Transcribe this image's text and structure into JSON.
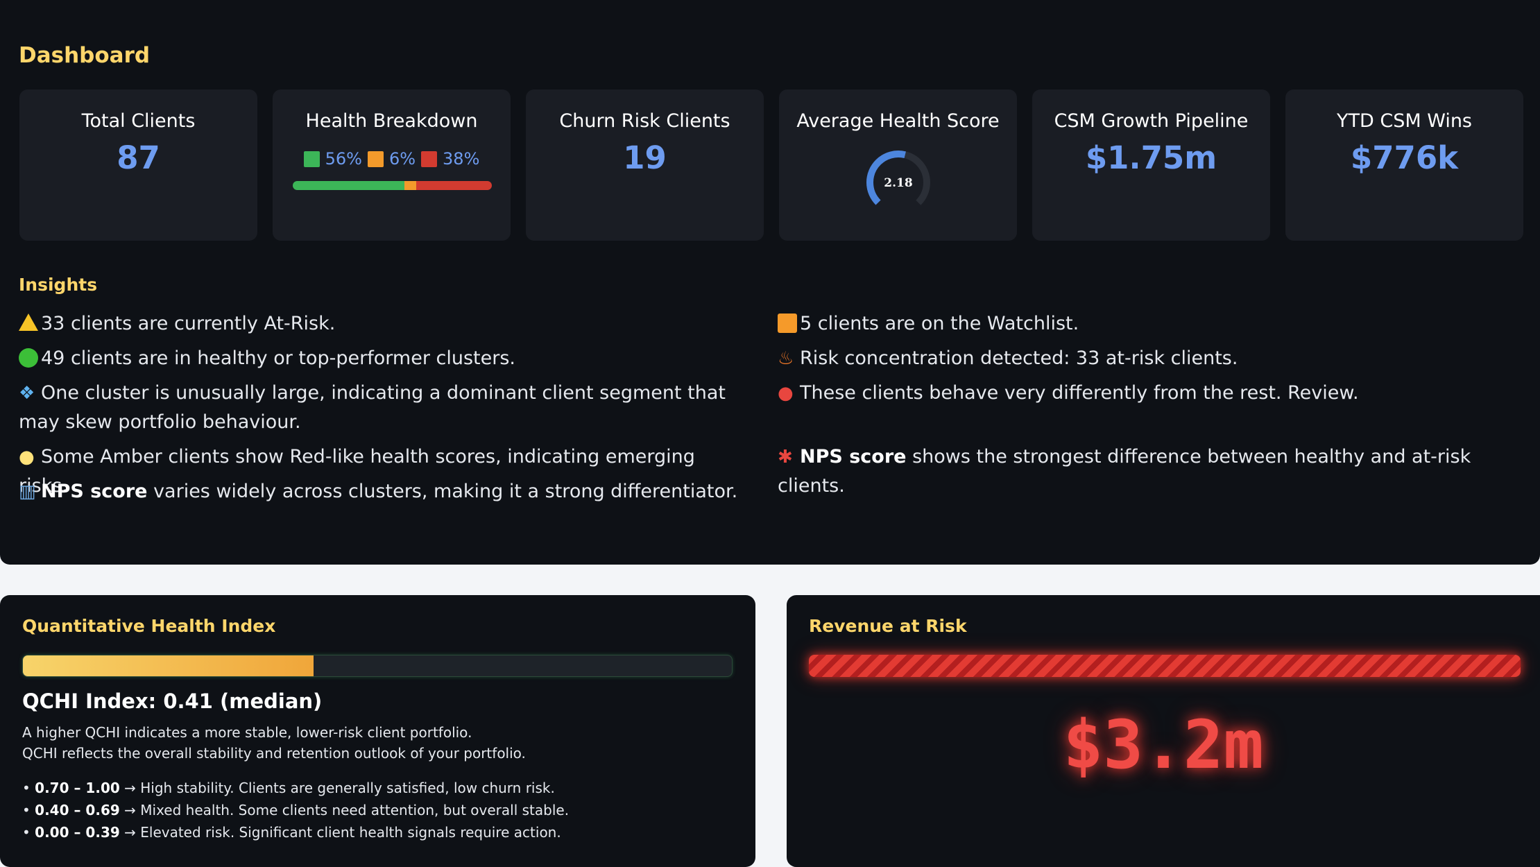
{
  "dashboard": {
    "title": "Dashboard"
  },
  "kpis": {
    "total_clients": {
      "label": "Total Clients",
      "value": "87"
    },
    "health_breakdown": {
      "label": "Health Breakdown",
      "green_pct": "56%",
      "amber_pct": "6%",
      "red_pct": "38%",
      "green": 56,
      "amber": 6,
      "red": 38,
      "colors": {
        "green": "#3cb558",
        "amber": "#f39a2b",
        "red": "#d23b30"
      }
    },
    "churn_risk": {
      "label": "Churn Risk Clients",
      "value": "19"
    },
    "avg_health": {
      "label": "Average Health Score",
      "value": "2.18",
      "gauge_fraction": 0.55
    },
    "pipeline": {
      "label": "CSM Growth Pipeline",
      "value": "$1.75m"
    },
    "ytd_wins": {
      "label": "YTD CSM Wins",
      "value": "$776k"
    }
  },
  "insights": {
    "title": "Insights",
    "left": [
      {
        "icon": "warning-icon",
        "text": "33 clients are currently At-Risk."
      },
      {
        "icon": "green-circle-icon",
        "text": "49 clients are in healthy or top-performer clusters."
      },
      {
        "icon": "diamond-icon",
        "text": "One cluster is unusually large, indicating a dominant client segment that may skew portfolio behaviour."
      },
      {
        "icon": "lightbulb-icon",
        "text": "Some Amber clients show Red-like health scores, indicating emerging risks."
      },
      {
        "icon": "bar-chart-icon",
        "bold": "NPS score",
        "text": " varies widely across clusters, making it a strong differentiator."
      }
    ],
    "right": [
      {
        "icon": "orange-square-icon",
        "text": "5 clients are on the Watchlist."
      },
      {
        "icon": "fire-icon",
        "text": "Risk concentration detected: 33 at-risk clients."
      },
      {
        "icon": "round-pin-icon",
        "text": "These clients behave very differently from the rest. Review."
      },
      {
        "icon": "pushpin-icon",
        "bold": "NPS score",
        "text": " shows the strongest difference between healthy and at-risk clients."
      }
    ]
  },
  "qhi": {
    "title": "Quantitative Health Index",
    "value": 0.41,
    "heading": "QCHI Index: 0.41 (median)",
    "desc1": "A higher QCHI indicates a more stable, lower-risk client portfolio.",
    "desc2": "QCHI reflects the overall stability and retention outlook of your portfolio.",
    "ranges": [
      {
        "range": "0.70 – 1.00",
        "text": " → High stability. Clients are generally satisfied, low churn risk."
      },
      {
        "range": "0.40 – 0.69",
        "text": " → Mixed health. Some clients need attention, but overall stable."
      },
      {
        "range": "0.00 – 0.39",
        "text": " → Elevated risk. Significant client health signals require action."
      }
    ]
  },
  "revenue_risk": {
    "title": "Revenue at Risk",
    "value": "$3.2m"
  }
}
